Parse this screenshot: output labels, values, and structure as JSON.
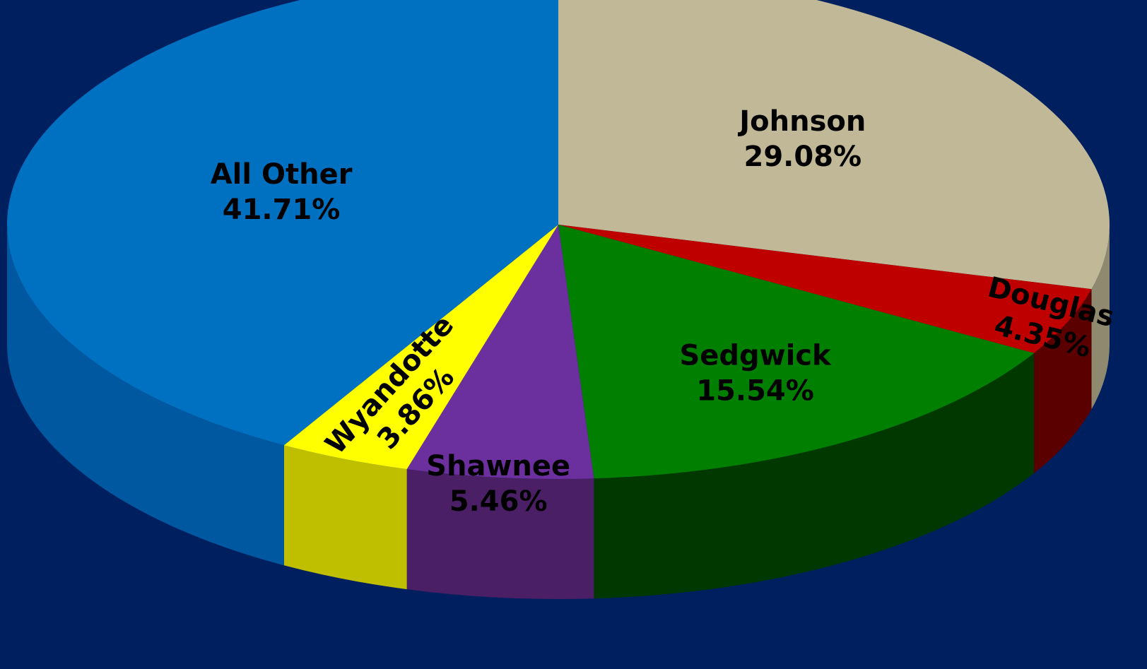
{
  "chart_data": {
    "type": "pie",
    "style": "3d-tilted",
    "start_angle_deg": 0,
    "direction": "clockwise",
    "slices": [
      {
        "name": "Johnson",
        "value": 29.08,
        "label": "29.08%",
        "color": "#c0b896",
        "side_color": "#8f8a6f"
      },
      {
        "name": "Douglas",
        "value": 4.35,
        "label": "4.35%",
        "color": "#bf0000",
        "side_color": "#5a0000"
      },
      {
        "name": "Sedgwick",
        "value": 15.54,
        "label": "15.54%",
        "color": "#007f00",
        "side_color": "#003800"
      },
      {
        "name": "Shawnee",
        "value": 5.46,
        "label": "5.46%",
        "color": "#6b2f9e",
        "side_color": "#4a1f66"
      },
      {
        "name": "Wyandotte",
        "value": 3.86,
        "label": "3.86%",
        "color": "#ffff00",
        "side_color": "#bfbf00"
      },
      {
        "name": "All Other",
        "value": 41.71,
        "label": "41.71%",
        "color": "#0070c0",
        "side_color": "#0058a0"
      }
    ],
    "data_labels": "inside",
    "legend": "none",
    "background": "#001f5e"
  }
}
